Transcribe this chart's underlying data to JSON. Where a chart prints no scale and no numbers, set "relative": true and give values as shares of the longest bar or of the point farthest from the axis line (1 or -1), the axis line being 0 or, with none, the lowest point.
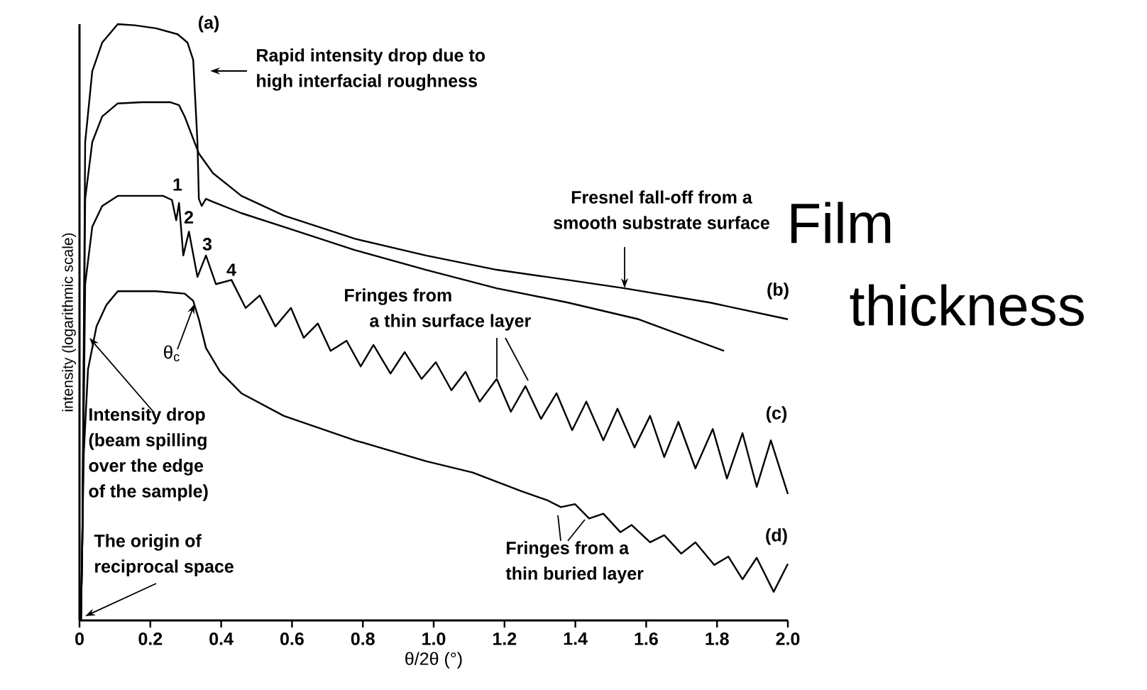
{
  "chart_data": {
    "type": "line",
    "relative": true,
    "marker": "none",
    "line_style": "solid",
    "xlabel": "θ/2θ (°)",
    "ylabel": "intensity (logarithmic scale)",
    "xlim": [
      0,
      2.0
    ],
    "xticks": [
      0,
      0.2,
      0.4,
      0.6,
      0.8,
      {
        "value": 1,
        "label": "1.0"
      },
      1.2,
      1.4,
      1.6,
      1.8,
      {
        "value": 2,
        "label": "2.0"
      }
    ],
    "series": [
      {
        "name": "(a)",
        "color": "#000000",
        "x": [
          0.004,
          0.008,
          0.016,
          0.036,
          0.064,
          0.108,
          0.156,
          0.216,
          0.277,
          0.305,
          0.321,
          0.333,
          0.337,
          0.345,
          0.357,
          0.377,
          0.457,
          0.577,
          0.778,
          0.978,
          1.178,
          1.379,
          1.579,
          1.82
        ],
        "values": [
          0,
          0.136,
          0.802,
          0.921,
          0.969,
          1.0,
          0.998,
          0.993,
          0.983,
          0.969,
          0.94,
          0.802,
          0.707,
          0.695,
          0.707,
          0.702,
          0.683,
          0.66,
          0.621,
          0.588,
          0.557,
          0.533,
          0.505,
          0.452
        ]
      },
      {
        "name": "(b)",
        "color": "#000000",
        "x": [
          0.004,
          0.008,
          0.016,
          0.036,
          0.064,
          0.108,
          0.176,
          0.257,
          0.281,
          0.297,
          0.317,
          0.337,
          0.377,
          0.457,
          0.577,
          0.778,
          0.978,
          1.178,
          1.379,
          1.539,
          1.78,
          2.0
        ],
        "values": [
          0,
          0.136,
          0.707,
          0.802,
          0.845,
          0.867,
          0.869,
          0.869,
          0.864,
          0.845,
          0.814,
          0.783,
          0.75,
          0.712,
          0.679,
          0.64,
          0.612,
          0.588,
          0.571,
          0.557,
          0.533,
          0.505
        ]
      },
      {
        "name": "(c)",
        "color": "#000000",
        "x": [
          0.004,
          0.008,
          0.016,
          0.036,
          0.064,
          0.108,
          0.236,
          0.261,
          0.273,
          0.281,
          0.293,
          0.309,
          0.333,
          0.357,
          0.385,
          0.429,
          0.469,
          0.509,
          0.553,
          0.597,
          0.633,
          0.673,
          0.709,
          0.754,
          0.794,
          0.83,
          0.878,
          0.918,
          0.966,
          1.006,
          1.05,
          1.09,
          1.13,
          1.178,
          1.218,
          1.259,
          1.303,
          1.347,
          1.391,
          1.431,
          1.479,
          1.519,
          1.567,
          1.611,
          1.651,
          1.691,
          1.739,
          1.788,
          1.828,
          1.872,
          1.912,
          1.952,
          2.0
        ],
        "values": [
          0,
          0.136,
          0.564,
          0.66,
          0.695,
          0.712,
          0.712,
          0.705,
          0.671,
          0.7,
          0.612,
          0.652,
          0.576,
          0.612,
          0.564,
          0.571,
          0.524,
          0.545,
          0.493,
          0.524,
          0.474,
          0.498,
          0.452,
          0.469,
          0.426,
          0.462,
          0.414,
          0.45,
          0.405,
          0.433,
          0.386,
          0.417,
          0.367,
          0.405,
          0.35,
          0.393,
          0.338,
          0.381,
          0.319,
          0.367,
          0.302,
          0.355,
          0.29,
          0.343,
          0.274,
          0.333,
          0.255,
          0.321,
          0.238,
          0.314,
          0.224,
          0.302,
          0.212
        ]
      },
      {
        "name": "(d)",
        "color": "#000000",
        "x": [
          0.004,
          0.012,
          0.024,
          0.048,
          0.076,
          0.108,
          0.216,
          0.297,
          0.321,
          0.337,
          0.357,
          0.397,
          0.457,
          0.577,
          0.778,
          0.978,
          1.11,
          1.246,
          1.319,
          1.359,
          1.399,
          1.439,
          1.479,
          1.527,
          1.559,
          1.611,
          1.651,
          1.699,
          1.739,
          1.792,
          1.832,
          1.872,
          1.912,
          1.96,
          2.0
        ],
        "values": [
          0,
          0.279,
          0.421,
          0.493,
          0.529,
          0.552,
          0.552,
          0.548,
          0.536,
          0.505,
          0.457,
          0.417,
          0.381,
          0.343,
          0.302,
          0.267,
          0.248,
          0.217,
          0.202,
          0.19,
          0.195,
          0.171,
          0.179,
          0.148,
          0.16,
          0.131,
          0.143,
          0.112,
          0.131,
          0.093,
          0.107,
          0.069,
          0.105,
          0.048,
          0.095
        ]
      }
    ],
    "annotations": [
      "Rapid intensity drop due to high interfacial roughness",
      "Fresnel fall-off from a smooth substrate surface",
      "Fringes from a thin surface layer",
      "θ$_{c}$",
      "Intensity drop (beam spilling over the edge of the sample)",
      "The origin of reciprocal space",
      "Fringes from a thin buried layer",
      "1",
      "2",
      "3",
      "4",
      "Film thickness"
    ]
  }
}
